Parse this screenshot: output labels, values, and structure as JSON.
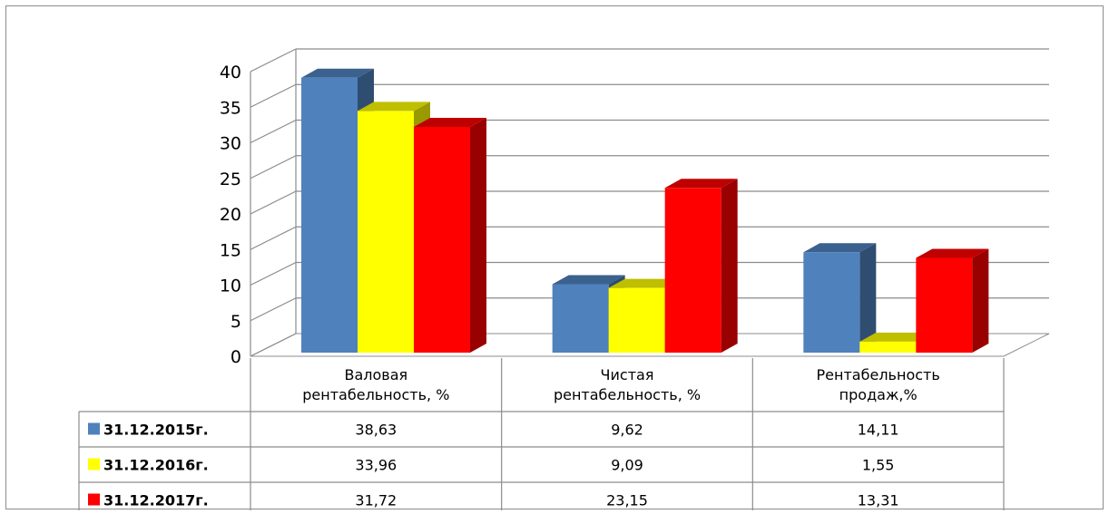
{
  "chart_data": {
    "type": "bar",
    "title": "",
    "xlabel": "",
    "ylabel": "",
    "ylim": [
      0,
      40
    ],
    "yticks": [
      0,
      5,
      10,
      15,
      20,
      25,
      30,
      35,
      40
    ],
    "grid": true,
    "three_d": true,
    "legend": "data-table-left",
    "categories": [
      [
        "Валовая",
        "рентабельность, %"
      ],
      [
        "Чистая",
        "рентабельность, %"
      ],
      [
        "Рентабельность",
        "продаж,%"
      ]
    ],
    "series": [
      {
        "name": "31.12.2015г.",
        "color": "#4F81BD",
        "values": [
          38.63,
          9.62,
          14.11
        ],
        "labels": [
          "38,63",
          "9,62",
          "14,11"
        ]
      },
      {
        "name": "31.12.2016г.",
        "color": "#FFFF00",
        "values": [
          33.96,
          9.09,
          1.55
        ],
        "labels": [
          "33,96",
          "9,09",
          "1,55"
        ]
      },
      {
        "name": "31.12.2017г.",
        "color": "#FF0000",
        "values": [
          31.72,
          23.15,
          13.31
        ],
        "labels": [
          "31,72",
          "23,15",
          "13,31"
        ]
      }
    ]
  }
}
